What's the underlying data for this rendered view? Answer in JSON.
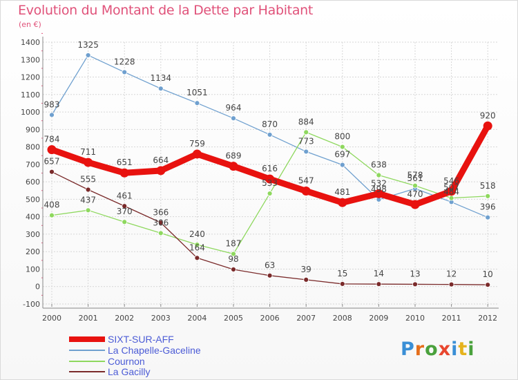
{
  "title": "Evolution du Montant de la Dette par Habitant",
  "unit": "(en €)",
  "logo": {
    "text": "Proxiti",
    "letter_colors": [
      "#3a8fd6",
      "#e56f1c",
      "#4aa13c",
      "#e8462e",
      "#3a8fd6",
      "#e5b21c",
      "#4aa13c"
    ]
  },
  "chart_data": {
    "type": "line",
    "x": [
      "2000",
      "2001",
      "2002",
      "2003",
      "2004",
      "2005",
      "2006",
      "2007",
      "2008",
      "2009",
      "2010",
      "2011",
      "2012"
    ],
    "ylim": [
      -100,
      1400
    ],
    "yticks": [
      "-100",
      "0",
      "100",
      "200",
      "300",
      "400",
      "500",
      "600",
      "700",
      "800",
      "900",
      "1000",
      "1100",
      "1200",
      "1300",
      "1400"
    ],
    "grid": true,
    "legend_position": "bottom-left",
    "series": [
      {
        "name": "La Chapelle-Gaceline",
        "color": "#6fa0cf",
        "values": [
          983,
          1325,
          1228,
          1134,
          1051,
          964,
          870,
          773,
          697,
          498,
          561,
          484,
          396
        ],
        "labels": [
          "983",
          "1325",
          "1228",
          "1134",
          "1051",
          "964",
          "870",
          "773",
          "697",
          "498",
          "561",
          "484",
          "396"
        ]
      },
      {
        "name": "Cournon",
        "color": "#8ed85e",
        "values": [
          408,
          437,
          370,
          306,
          240,
          187,
          533,
          884,
          800,
          638,
          578,
          507,
          518
        ],
        "labels": [
          "408",
          "437",
          "370",
          "306",
          "240",
          "187",
          "533",
          "884",
          "800",
          "638",
          "578",
          "507",
          "518"
        ]
      },
      {
        "name": "La Gacilly",
        "color": "#7a2a2a",
        "values": [
          657,
          555,
          461,
          366,
          164,
          98,
          63,
          39,
          15,
          14,
          13,
          12,
          10
        ],
        "labels": [
          "657",
          "555",
          "461",
          "366",
          "164",
          "98",
          "63",
          "39",
          "15",
          "14",
          "13",
          "12",
          "10"
        ]
      },
      {
        "name": "SIXT-SUR-AFF",
        "color": "#e8120f",
        "values": [
          784,
          711,
          651,
          664,
          759,
          689,
          616,
          547,
          481,
          532,
          470,
          546,
          920
        ],
        "labels": [
          "784",
          "711",
          "651",
          "664",
          "759",
          "689",
          "616",
          "547",
          "481",
          "532",
          "470",
          "546",
          "920"
        ]
      }
    ]
  },
  "legend": [
    {
      "label": "SIXT-SUR-AFF",
      "color": "#e8120f"
    },
    {
      "label": "La Chapelle-Gaceline",
      "color": "#6fa0cf"
    },
    {
      "label": "Cournon",
      "color": "#8ed85e"
    },
    {
      "label": "La Gacilly",
      "color": "#7a2a2a"
    }
  ]
}
